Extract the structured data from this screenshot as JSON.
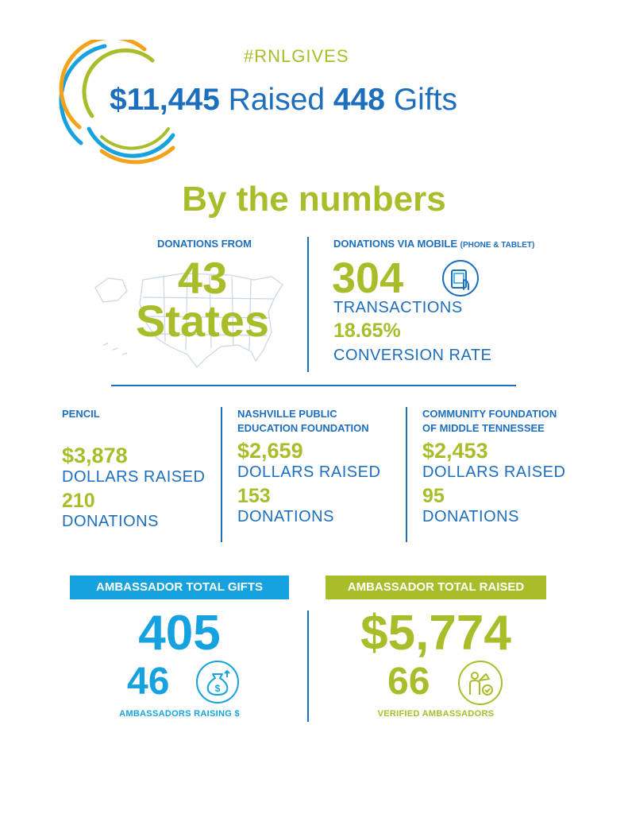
{
  "header": {
    "hashtag": "#RNLGIVES",
    "raised_amount": "$11,445",
    "raised_word": "Raised",
    "gifts_count": "448",
    "gifts_word": "Gifts"
  },
  "section_title": "By the numbers",
  "states": {
    "label": "DONATIONS FROM",
    "count": "43",
    "word": "States"
  },
  "mobile": {
    "label": "DONATIONS VIA MOBILE",
    "label_note": "(PHONE & TABLET)",
    "transactions": "304",
    "transactions_label": "TRANSACTIONS",
    "conversion_rate": "18.65%",
    "conversion_label": "CONVERSION RATE",
    "icon": "tablet-touch-icon"
  },
  "orgs": [
    {
      "name_line1": "PENCIL",
      "name_line2": "",
      "raised": "$3,878",
      "raised_label": "DOLLARS RAISED",
      "donations": "210",
      "donations_label": "DONATIONS"
    },
    {
      "name_line1": "NASHVILLE PUBLIC",
      "name_line2": "EDUCATION FOUNDATION",
      "raised": "$2,659",
      "raised_label": "DOLLARS RAISED",
      "donations": "153",
      "donations_label": "DONATIONS"
    },
    {
      "name_line1": "COMMUNITY FOUNDATION",
      "name_line2": "OF MIDDLE TENNESSEE",
      "raised": "$2,453",
      "raised_label": "DOLLARS RAISED",
      "donations": "95",
      "donations_label": "DONATIONS"
    }
  ],
  "ambassador_gifts": {
    "banner": "AMBASSADOR TOTAL GIFTS",
    "total": "405",
    "ambassadors": "46",
    "ambassadors_label": "AMBASSADORS RAISING $",
    "icon": "money-bag-icon"
  },
  "ambassador_raised": {
    "banner": "AMBASSADOR TOTAL RAISED",
    "total": "$5,774",
    "verified": "66",
    "verified_label": "VERIFIED AMBASSADORS",
    "icon": "megaphone-person-icon"
  },
  "colors": {
    "blue": "#1d6fbd",
    "green": "#a9bd2b",
    "cyan": "#16a2df",
    "orange": "#f2a31c"
  }
}
